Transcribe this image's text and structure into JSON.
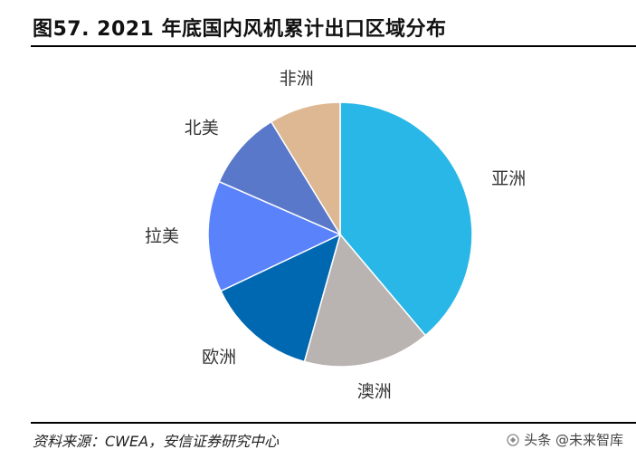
{
  "title": "图57. 2021 年底国内风机累计出口区域分布",
  "source": "资料来源：CWEA，安信证券研究中心",
  "watermark": {
    "text": "头条 @未来智库",
    "icon": "toutiao-logo-icon"
  },
  "chart_data": {
    "type": "pie",
    "title": "",
    "categories": [
      "亚洲",
      "澳洲",
      "欧洲",
      "拉美",
      "北美",
      "非洲"
    ],
    "values": [
      40,
      16,
      14,
      14,
      10,
      9
    ],
    "colors": [
      "#29B7E8",
      "#B9B4B2",
      "#0067B1",
      "#5A82FA",
      "#5A78CA",
      "#DDB892"
    ],
    "start_angle_deg": 0,
    "direction": "clockwise",
    "legend": "none",
    "data_labels": "category names outside slices"
  }
}
